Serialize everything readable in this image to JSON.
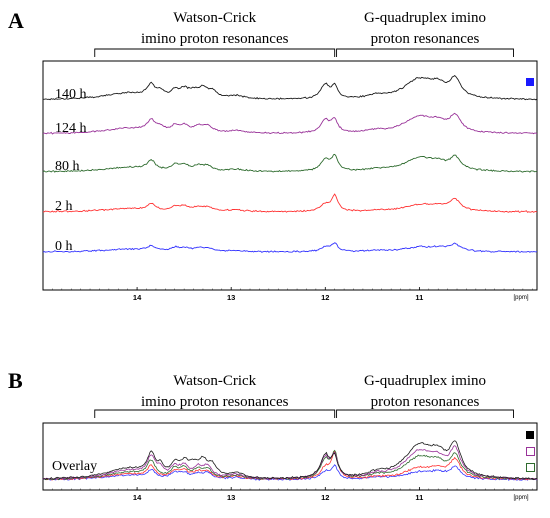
{
  "chart_data": [
    {
      "type": "line",
      "panel": "A",
      "xlabel": "[ppm]",
      "x_reversed": true,
      "xlim": [
        15.0,
        9.75
      ],
      "x_ticks": [
        14,
        13,
        12,
        11
      ],
      "grid": false,
      "regions": [
        {
          "label_line1": "Watson-Crick",
          "label_line2": "imino proton resonances",
          "from_ppm": 14.45,
          "to_ppm": 11.9
        },
        {
          "label_line1": "G-quadruplex imino",
          "label_line2": "proton resonances",
          "from_ppm": 11.88,
          "to_ppm": 10.0
        }
      ],
      "legend": [
        {
          "position": "top-right",
          "color": "#1a1aff",
          "shape": "filled-square"
        }
      ],
      "series": [
        {
          "name": "140 h",
          "color": "#1a1a1a",
          "peaks": [
            [
              14.1,
              0.12,
              0.3
            ],
            [
              13.85,
              0.22,
              0.05
            ],
            [
              13.75,
              0.09,
              0.04
            ],
            [
              13.6,
              0.12,
              0.05
            ],
            [
              13.5,
              0.14,
              0.06
            ],
            [
              13.4,
              0.11,
              0.06
            ],
            [
              13.3,
              0.16,
              0.06
            ],
            [
              13.2,
              0.12,
              0.06
            ],
            [
              12.95,
              0.06,
              0.1
            ],
            [
              12.0,
              0.25,
              0.06
            ],
            [
              11.9,
              0.2,
              0.04
            ],
            [
              11.45,
              0.05,
              0.1
            ],
            [
              11.0,
              0.36,
              0.2
            ],
            [
              10.8,
              0.16,
              0.1
            ],
            [
              10.62,
              0.32,
              0.07
            ]
          ]
        },
        {
          "name": "124 h",
          "color": "#993399",
          "peaks": [
            [
              14.1,
              0.1,
              0.3
            ],
            [
              13.85,
              0.2,
              0.05
            ],
            [
              13.75,
              0.08,
              0.04
            ],
            [
              13.6,
              0.1,
              0.05
            ],
            [
              13.5,
              0.12,
              0.06
            ],
            [
              13.35,
              0.1,
              0.06
            ],
            [
              13.25,
              0.12,
              0.06
            ],
            [
              12.95,
              0.05,
              0.1
            ],
            [
              12.0,
              0.23,
              0.06
            ],
            [
              11.9,
              0.22,
              0.04
            ],
            [
              11.45,
              0.04,
              0.1
            ],
            [
              11.0,
              0.3,
              0.2
            ],
            [
              10.8,
              0.12,
              0.1
            ],
            [
              10.62,
              0.28,
              0.07
            ]
          ]
        },
        {
          "name": "80 h",
          "color": "#2e6b2e",
          "peaks": [
            [
              14.1,
              0.08,
              0.3
            ],
            [
              13.85,
              0.17,
              0.05
            ],
            [
              13.6,
              0.09,
              0.05
            ],
            [
              13.5,
              0.1,
              0.06
            ],
            [
              13.35,
              0.08,
              0.06
            ],
            [
              13.25,
              0.09,
              0.06
            ],
            [
              12.95,
              0.04,
              0.1
            ],
            [
              12.0,
              0.2,
              0.06
            ],
            [
              11.9,
              0.26,
              0.04
            ],
            [
              11.45,
              0.03,
              0.1
            ],
            [
              11.0,
              0.24,
              0.2
            ],
            [
              10.8,
              0.1,
              0.1
            ],
            [
              10.62,
              0.22,
              0.07
            ]
          ]
        },
        {
          "name": "2 h",
          "color": "#ff3333",
          "peaks": [
            [
              14.1,
              0.06,
              0.3
            ],
            [
              13.85,
              0.12,
              0.05
            ],
            [
              13.6,
              0.07,
              0.05
            ],
            [
              13.5,
              0.08,
              0.06
            ],
            [
              13.35,
              0.07,
              0.06
            ],
            [
              13.25,
              0.07,
              0.06
            ],
            [
              12.95,
              0.03,
              0.1
            ],
            [
              12.0,
              0.12,
              0.06
            ],
            [
              11.9,
              0.28,
              0.04
            ],
            [
              11.45,
              0.02,
              0.1
            ],
            [
              11.0,
              0.12,
              0.2
            ],
            [
              10.8,
              0.07,
              0.1
            ],
            [
              10.62,
              0.2,
              0.07
            ]
          ]
        },
        {
          "name": "0 h",
          "color": "#3333ff",
          "peaks": [
            [
              14.1,
              0.05,
              0.3
            ],
            [
              13.85,
              0.08,
              0.05
            ],
            [
              13.6,
              0.06,
              0.05
            ],
            [
              13.5,
              0.06,
              0.06
            ],
            [
              13.35,
              0.05,
              0.06
            ],
            [
              13.25,
              0.06,
              0.06
            ],
            [
              12.95,
              0.02,
              0.1
            ],
            [
              12.0,
              0.08,
              0.06
            ],
            [
              11.9,
              0.14,
              0.04
            ],
            [
              11.45,
              0.02,
              0.1
            ],
            [
              11.0,
              0.08,
              0.2
            ],
            [
              10.8,
              0.05,
              0.1
            ],
            [
              10.62,
              0.12,
              0.07
            ]
          ]
        }
      ]
    },
    {
      "type": "line",
      "panel": "B",
      "xlabel": "[ppm]",
      "x_reversed": true,
      "xlim": [
        15.0,
        9.75
      ],
      "x_ticks": [
        14,
        13,
        12,
        11
      ],
      "grid": false,
      "overlay_label": "Overlay",
      "regions": [
        {
          "label_line1": "Watson-Crick",
          "label_line2": "imino proton resonances",
          "from_ppm": 14.45,
          "to_ppm": 11.9
        },
        {
          "label_line1": "G-quadruplex imino",
          "label_line2": "proton resonances",
          "from_ppm": 11.88,
          "to_ppm": 10.0
        }
      ],
      "legend": [
        {
          "position": "top-right",
          "color": "#000000",
          "shape": "filled-square"
        },
        {
          "position": "top-right",
          "color": "#993399",
          "shape": "open-square"
        },
        {
          "position": "top-right",
          "color": "#2e6b2e",
          "shape": "open-square"
        }
      ],
      "series_order": [
        "140 h",
        "124 h",
        "80 h",
        "2 h",
        "0 h"
      ]
    }
  ],
  "labels": {
    "panel_a": "A",
    "panel_b": "B"
  }
}
